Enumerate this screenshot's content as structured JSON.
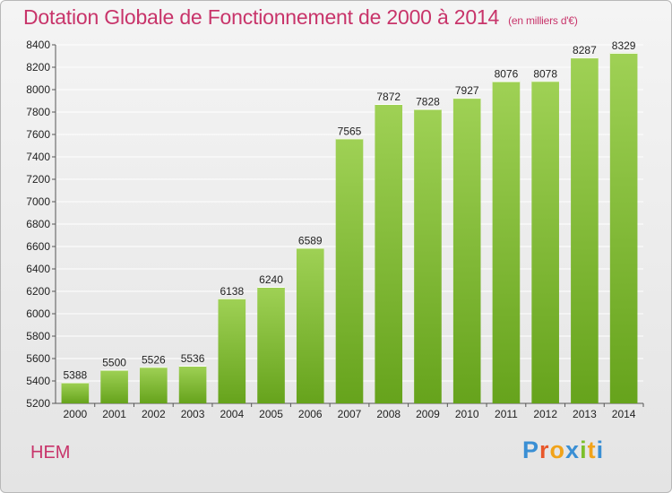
{
  "header": {
    "title": "Dotation Globale de Fonctionnement de 2000 à 2014",
    "unit": "(en milliers d'€)"
  },
  "footer": {
    "place": "HEM",
    "brand": "Proxiti"
  },
  "colors": {
    "title": "#c8346a",
    "bar_top": "#9fd155",
    "bar_bottom": "#66a31c",
    "grid": "#ffffff"
  },
  "chart_data": {
    "type": "bar",
    "title": "Dotation Globale de Fonctionnement de 2000 à 2014",
    "subtitle": "(en milliers d'€)",
    "xlabel": "",
    "ylabel": "",
    "categories": [
      "2000",
      "2001",
      "2002",
      "2003",
      "2004",
      "2005",
      "2006",
      "2007",
      "2008",
      "2009",
      "2010",
      "2011",
      "2012",
      "2013",
      "2014"
    ],
    "values": [
      5388,
      5500,
      5526,
      5536,
      6138,
      6240,
      6589,
      7565,
      7872,
      7828,
      7927,
      8076,
      8078,
      8287,
      8329
    ],
    "ylim": [
      5200,
      8400
    ],
    "yticks": [
      5200,
      5400,
      5600,
      5800,
      6000,
      6200,
      6400,
      6600,
      6800,
      7000,
      7200,
      7400,
      7600,
      7800,
      8000,
      8200,
      8400
    ],
    "grid": true,
    "legend": "none"
  }
}
